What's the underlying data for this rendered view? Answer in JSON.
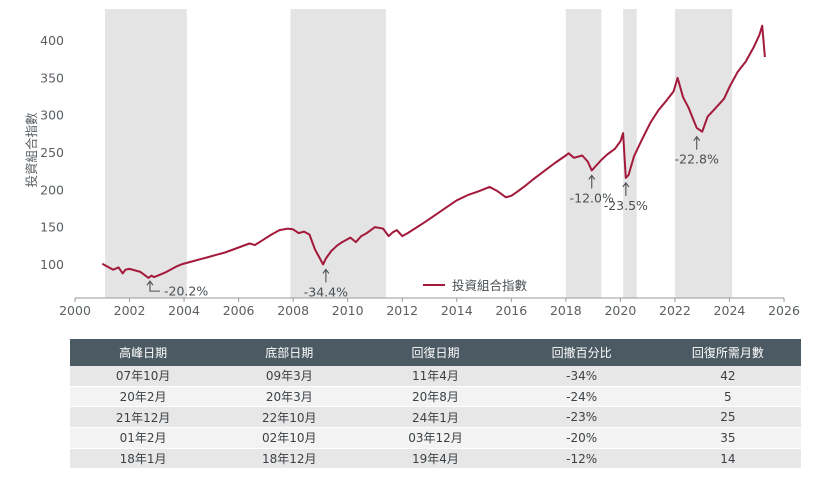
{
  "chart_data": {
    "type": "line",
    "title": "",
    "ylabel": "投資組合指數",
    "xlim": [
      2000,
      2026
    ],
    "ylim": [
      55,
      425
    ],
    "x_ticks": [
      2000,
      2002,
      2004,
      2006,
      2008,
      2010,
      2012,
      2014,
      2016,
      2018,
      2020,
      2022,
      2024,
      2026
    ],
    "y_ticks": [
      100,
      150,
      200,
      250,
      300,
      350,
      400
    ],
    "grid": false,
    "legend_position": "bottom-center",
    "series": [
      {
        "name": "投資組合指數",
        "color": "#a3193a",
        "x": [
          2001.0,
          2001.2,
          2001.4,
          2001.6,
          2001.75,
          2001.85,
          2002.0,
          2002.2,
          2002.4,
          2002.55,
          2002.7,
          2002.8,
          2002.9,
          2003.1,
          2003.3,
          2003.5,
          2003.7,
          2003.9,
          2004.1,
          2004.3,
          2004.6,
          2004.9,
          2005.2,
          2005.5,
          2005.8,
          2006.1,
          2006.4,
          2006.6,
          2006.9,
          2007.2,
          2007.5,
          2007.8,
          2008.0,
          2008.2,
          2008.4,
          2008.6,
          2008.8,
          2008.95,
          2009.1,
          2009.2,
          2009.4,
          2009.6,
          2009.8,
          2010.1,
          2010.3,
          2010.5,
          2010.7,
          2011.0,
          2011.3,
          2011.5,
          2011.65,
          2011.8,
          2012.0,
          2012.2,
          2012.5,
          2012.8,
          2013.2,
          2013.6,
          2014.0,
          2014.4,
          2014.8,
          2015.2,
          2015.5,
          2015.8,
          2016.0,
          2016.2,
          2016.5,
          2016.8,
          2017.2,
          2017.6,
          2018.0,
          2018.1,
          2018.3,
          2018.6,
          2018.8,
          2018.95,
          2019.1,
          2019.3,
          2019.5,
          2019.8,
          2020.0,
          2020.1,
          2020.2,
          2020.3,
          2020.5,
          2020.8,
          2021.1,
          2021.4,
          2021.7,
          2021.95,
          2022.1,
          2022.3,
          2022.5,
          2022.7,
          2022.8,
          2023.0,
          2023.2,
          2023.5,
          2023.8,
          2024.0,
          2024.3,
          2024.6,
          2024.9,
          2025.1,
          2025.2,
          2025.3
        ],
        "values": [
          101,
          97,
          93,
          96,
          88,
          93,
          94,
          92,
          90,
          86,
          82,
          85,
          83,
          86,
          89,
          93,
          97,
          100,
          102,
          104,
          107,
          110,
          113,
          116,
          120,
          124,
          128,
          126,
          133,
          140,
          146,
          148,
          147,
          142,
          144,
          140,
          120,
          110,
          100,
          108,
          118,
          125,
          130,
          136,
          130,
          138,
          142,
          150,
          148,
          138,
          143,
          146,
          138,
          142,
          149,
          156,
          166,
          176,
          186,
          193,
          198,
          204,
          198,
          190,
          192,
          197,
          205,
          214,
          225,
          236,
          246,
          249,
          243,
          246,
          238,
          226,
          232,
          240,
          247,
          255,
          265,
          276,
          216,
          220,
          245,
          268,
          290,
          307,
          320,
          332,
          350,
          324,
          310,
          292,
          283,
          278,
          298,
          310,
          322,
          338,
          358,
          372,
          392,
          408,
          420,
          378
        ],
        "legend_label": "投資組合指數"
      }
    ],
    "shaded_periods": [
      {
        "start": 2001.1,
        "end": 2004.1
      },
      {
        "start": 2007.9,
        "end": 2011.4
      },
      {
        "start": 2018.0,
        "end": 2019.3
      },
      {
        "start": 2020.1,
        "end": 2020.6
      },
      {
        "start": 2022.0,
        "end": 2024.1
      }
    ],
    "annotations": [
      {
        "label": "-20.2%",
        "x": 2002.75,
        "y": 83,
        "side": "right"
      },
      {
        "label": "-34.4%",
        "x": 2009.2,
        "y": 100,
        "side": "below"
      },
      {
        "label": "-12.0%",
        "x": 2018.95,
        "y": 226,
        "side": "below"
      },
      {
        "label": "-23.5%",
        "x": 2020.2,
        "y": 216,
        "side": "below"
      },
      {
        "label": "-22.8%",
        "x": 2022.8,
        "y": 278,
        "side": "below"
      }
    ]
  },
  "table": {
    "headers": [
      "高峰日期",
      "底部日期",
      "回復日期",
      "回撤百分比",
      "回復所需月數"
    ],
    "rows": [
      [
        "07年10月",
        "09年3月",
        "11年4月",
        "-34%",
        "42"
      ],
      [
        "20年2月",
        "20年3月",
        "20年8月",
        "-24%",
        "5"
      ],
      [
        "21年12月",
        "22年10月",
        "24年1月",
        "-23%",
        "25"
      ],
      [
        "01年2月",
        "02年10月",
        "03年12月",
        "-20%",
        "35"
      ],
      [
        "18年1月",
        "18年12月",
        "19年4月",
        "-12%",
        "14"
      ]
    ]
  }
}
